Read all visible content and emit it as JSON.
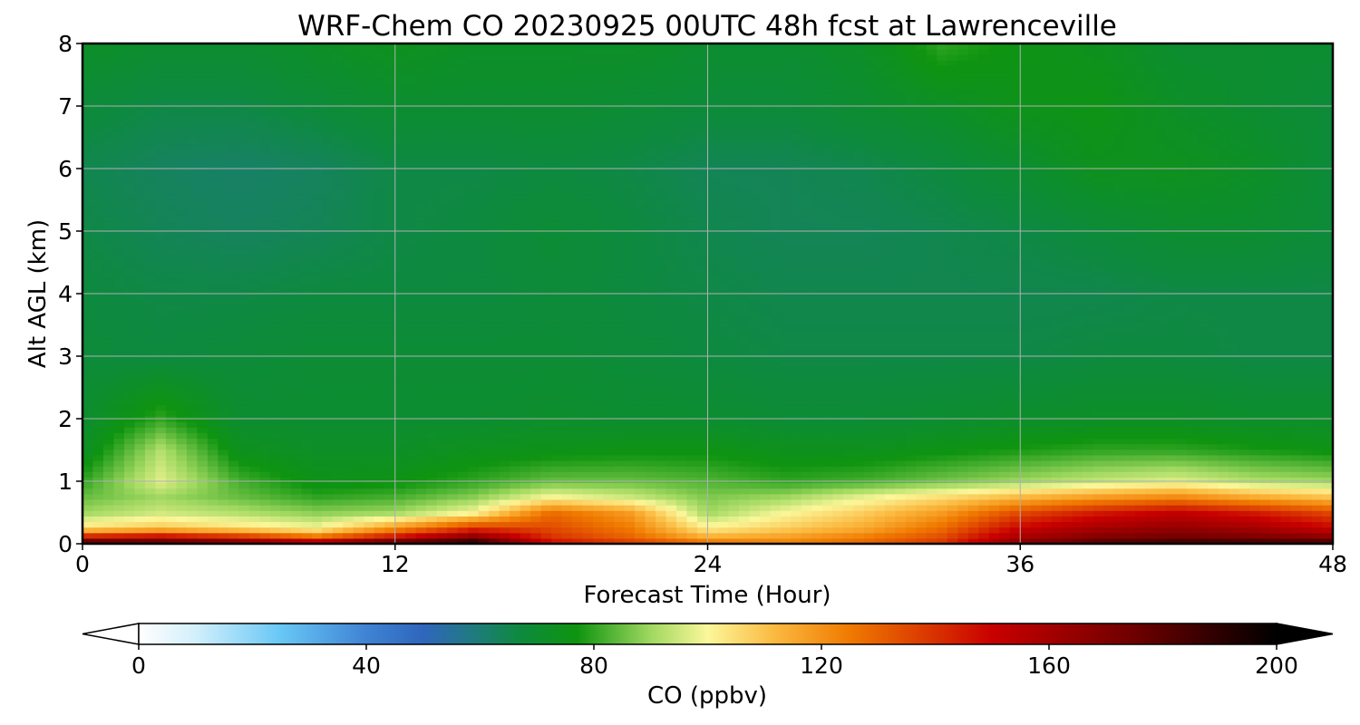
{
  "chart_data": {
    "type": "heatmap",
    "title": "WRF-Chem CO  20230925 00UTC 48h fcst at Lawrenceville",
    "xlabel": "Forecast Time (Hour)",
    "ylabel": "Alt AGL (km)",
    "xlim": [
      0,
      48
    ],
    "ylim": [
      0,
      8
    ],
    "xticks": [
      0,
      12,
      24,
      36,
      48
    ],
    "yticks": [
      0,
      1,
      2,
      3,
      4,
      5,
      6,
      7,
      8
    ],
    "grid": true,
    "x": [
      0,
      3,
      6,
      9,
      12,
      15,
      18,
      21,
      24,
      27,
      30,
      33,
      36,
      39,
      42,
      45,
      48
    ],
    "y": [
      0,
      0.1,
      0.25,
      0.5,
      0.75,
      1,
      1.5,
      2,
      3,
      4,
      5,
      6,
      7,
      8
    ],
    "values": [
      [
        195,
        190,
        180,
        170,
        190,
        200,
        150,
        140,
        130,
        125,
        130,
        140,
        170,
        185,
        190,
        190,
        190
      ],
      [
        150,
        155,
        145,
        130,
        150,
        170,
        140,
        130,
        115,
        118,
        125,
        135,
        160,
        170,
        175,
        172,
        168
      ],
      [
        105,
        110,
        105,
        100,
        120,
        140,
        135,
        125,
        102,
        108,
        115,
        128,
        150,
        160,
        165,
        160,
        150
      ],
      [
        90,
        95,
        92,
        88,
        90,
        100,
        128,
        118,
        90,
        100,
        108,
        118,
        135,
        145,
        152,
        145,
        135
      ],
      [
        85,
        90,
        85,
        80,
        82,
        88,
        100,
        95,
        87,
        90,
        98,
        105,
        112,
        118,
        122,
        115,
        110
      ],
      [
        80,
        97,
        82,
        75,
        76,
        80,
        85,
        85,
        83,
        80,
        82,
        86,
        90,
        94,
        97,
        92,
        90
      ],
      [
        72,
        92,
        74,
        72,
        72,
        74,
        75,
        76,
        76,
        74,
        74,
        76,
        78,
        80,
        80,
        78,
        76
      ],
      [
        70,
        80,
        70,
        70,
        70,
        70,
        71,
        70,
        70,
        69,
        69,
        70,
        71,
        72,
        72,
        71,
        71
      ],
      [
        68,
        67,
        68,
        69,
        69,
        69,
        69,
        68,
        67,
        66,
        66,
        66,
        66,
        67,
        67,
        66,
        66
      ],
      [
        67,
        66,
        66,
        67,
        67,
        67,
        68,
        67,
        66,
        65,
        65,
        65,
        65,
        65,
        66,
        66,
        66
      ],
      [
        66,
        64,
        63,
        64,
        66,
        67,
        69,
        67,
        65,
        64,
        64,
        65,
        66,
        68,
        70,
        70,
        68
      ],
      [
        65,
        63,
        62,
        63,
        66,
        66,
        67,
        66,
        64,
        64,
        65,
        67,
        70,
        74,
        74,
        72,
        68
      ],
      [
        68,
        66,
        66,
        68,
        70,
        70,
        70,
        69,
        68,
        68,
        70,
        72,
        75,
        76,
        72,
        70,
        68
      ],
      [
        72,
        70,
        70,
        72,
        74,
        72,
        72,
        72,
        70,
        70,
        72,
        80,
        76,
        74,
        70,
        70,
        70
      ]
    ]
  },
  "colorbar": {
    "label": "CO  (ppbv)",
    "min": 0,
    "max": 200,
    "ticks": [
      "0",
      "40",
      "80",
      "120",
      "160",
      "200"
    ],
    "extend": "both",
    "under_color": "#ffffff",
    "over_color": "#000000",
    "stops": [
      [
        0,
        "#ffffff"
      ],
      [
        10,
        "#d2effb"
      ],
      [
        25,
        "#68c7f5"
      ],
      [
        40,
        "#3f83d4"
      ],
      [
        50,
        "#2f66bd"
      ],
      [
        60,
        "#1d7d76"
      ],
      [
        67,
        "#0d8a3e"
      ],
      [
        77,
        "#0e9410"
      ],
      [
        90,
        "#a0d860"
      ],
      [
        100,
        "#fbf79a"
      ],
      [
        112,
        "#fbb83e"
      ],
      [
        125,
        "#f07a00"
      ],
      [
        150,
        "#c80000"
      ],
      [
        175,
        "#6e0000"
      ],
      [
        200,
        "#000000"
      ]
    ]
  }
}
